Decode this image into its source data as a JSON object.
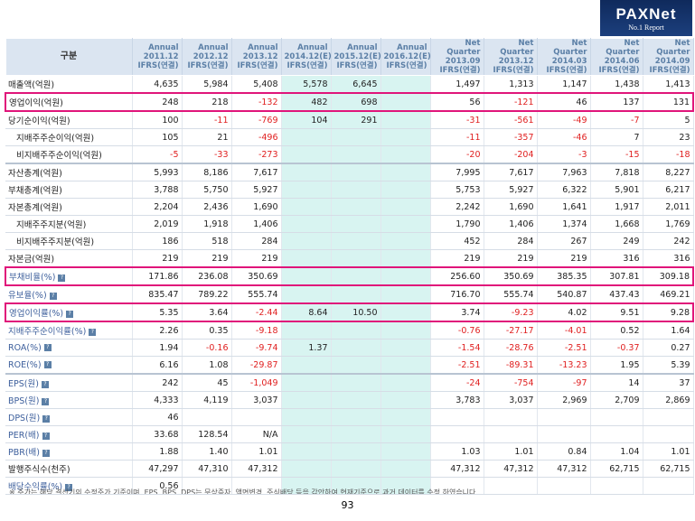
{
  "logo": {
    "brand": "PAXNet",
    "tagline": "No.1 Report"
  },
  "table": {
    "header": [
      [
        "구분"
      ],
      [
        "Annual",
        "2011.12",
        "IFRS(연결)"
      ],
      [
        "Annual",
        "2012.12",
        "IFRS(연결)"
      ],
      [
        "Annual",
        "2013.12",
        "IFRS(연결)"
      ],
      [
        "Annual",
        "2014.12(E)",
        "IFRS(연결)"
      ],
      [
        "Annual",
        "2015.12(E)",
        "IFRS(연결)"
      ],
      [
        "Annual",
        "2016.12(E)",
        "IFRS(연결)"
      ],
      [
        "Net Quarter",
        "2013.09",
        "IFRS(연결)"
      ],
      [
        "Net Quarter",
        "2013.12",
        "IFRS(연결)"
      ],
      [
        "Net Quarter",
        "2014.03",
        "IFRS(연결)"
      ],
      [
        "Net Quarter",
        "2014.06",
        "IFRS(연결)"
      ],
      [
        "Net Quarter",
        "2014.09",
        "IFRS(연결)"
      ]
    ],
    "estimate_columns": [
      4,
      5,
      6
    ],
    "rows": [
      {
        "label": "매출액(억원)",
        "cells": [
          "4,635",
          "5,984",
          "5,408",
          "5,578",
          "6,645",
          null,
          "1,497",
          "1,313",
          "1,147",
          "1,438",
          "1,413"
        ]
      },
      {
        "label": "영업이익(억원)",
        "highlight": true,
        "cells": [
          "248",
          "218",
          "-132",
          "482",
          "698",
          null,
          "56",
          "-121",
          "46",
          "137",
          "131"
        ]
      },
      {
        "label": "당기순이익(억원)",
        "cells": [
          "100",
          "-11",
          "-769",
          "104",
          "291",
          null,
          "-31",
          "-561",
          "-49",
          "-7",
          "5"
        ]
      },
      {
        "label": "지배주주순이익(억원)",
        "indent": true,
        "cells": [
          "105",
          "21",
          "-496",
          null,
          null,
          null,
          "-11",
          "-357",
          "-46",
          "7",
          "23"
        ]
      },
      {
        "label": "비지배주주순이익(억원)",
        "indent": true,
        "cells": [
          "-5",
          "-33",
          "-273",
          null,
          null,
          null,
          "-20",
          "-204",
          "-3",
          "-15",
          "-18"
        ]
      },
      {
        "label": "자산총계(억원)",
        "group_start": true,
        "cells": [
          "5,993",
          "8,186",
          "7,617",
          null,
          null,
          null,
          "7,995",
          "7,617",
          "7,963",
          "7,818",
          "8,227"
        ]
      },
      {
        "label": "부채총계(억원)",
        "cells": [
          "3,788",
          "5,750",
          "5,927",
          null,
          null,
          null,
          "5,753",
          "5,927",
          "6,322",
          "5,901",
          "6,217"
        ]
      },
      {
        "label": "자본총계(억원)",
        "cells": [
          "2,204",
          "2,436",
          "1,690",
          null,
          null,
          null,
          "2,242",
          "1,690",
          "1,641",
          "1,917",
          "2,011"
        ]
      },
      {
        "label": "지배주주지분(억원)",
        "indent": true,
        "cells": [
          "2,019",
          "1,918",
          "1,406",
          null,
          null,
          null,
          "1,790",
          "1,406",
          "1,374",
          "1,668",
          "1,769"
        ]
      },
      {
        "label": "비지배주주지분(억원)",
        "indent": true,
        "cells": [
          "186",
          "518",
          "284",
          null,
          null,
          null,
          "452",
          "284",
          "267",
          "249",
          "242"
        ]
      },
      {
        "label": "자본금(억원)",
        "cells": [
          "219",
          "219",
          "219",
          null,
          null,
          null,
          "219",
          "219",
          "219",
          "316",
          "316"
        ]
      },
      {
        "label": "부채비율(%)",
        "link": true,
        "highlight": true,
        "group_start": true,
        "cells": [
          "171.86",
          "236.08",
          "350.69",
          null,
          null,
          null,
          "256.60",
          "350.69",
          "385.35",
          "307.81",
          "309.18"
        ]
      },
      {
        "label": "유보율(%)",
        "link": true,
        "cells": [
          "835.47",
          "789.22",
          "555.74",
          null,
          null,
          null,
          "716.70",
          "555.74",
          "540.87",
          "437.43",
          "469.21"
        ]
      },
      {
        "label": "영업이익률(%)",
        "link": true,
        "highlight": true,
        "group_start": true,
        "cells": [
          "5.35",
          "3.64",
          "-2.44",
          "8.64",
          "10.50",
          null,
          "3.74",
          "-9.23",
          "4.02",
          "9.51",
          "9.28"
        ]
      },
      {
        "label": "지배주주순이익률(%)",
        "link": true,
        "cells": [
          "2.26",
          "0.35",
          "-9.18",
          null,
          null,
          null,
          "-0.76",
          "-27.17",
          "-4.01",
          "0.52",
          "1.64"
        ]
      },
      {
        "label": "ROA(%)",
        "link": true,
        "cells": [
          "1.94",
          "-0.16",
          "-9.74",
          "1.37",
          null,
          null,
          "-1.54",
          "-28.76",
          "-2.51",
          "-0.37",
          "0.27"
        ]
      },
      {
        "label": "ROE(%)",
        "link": true,
        "cells": [
          "6.16",
          "1.08",
          "-29.87",
          null,
          null,
          null,
          "-2.51",
          "-89.31",
          "-13.23",
          "1.95",
          "5.39"
        ]
      },
      {
        "label": "EPS(원)",
        "link": true,
        "group_start": true,
        "cells": [
          "242",
          "45",
          "-1,049",
          null,
          null,
          null,
          "-24",
          "-754",
          "-97",
          "14",
          "37"
        ]
      },
      {
        "label": "BPS(원)",
        "link": true,
        "cells": [
          "4,333",
          "4,119",
          "3,037",
          null,
          null,
          null,
          "3,783",
          "3,037",
          "2,969",
          "2,709",
          "2,869"
        ]
      },
      {
        "label": "DPS(원)",
        "link": true,
        "cells": [
          "46",
          null,
          null,
          null,
          null,
          null,
          null,
          null,
          null,
          null,
          null
        ]
      },
      {
        "label": "PER(배)",
        "link": true,
        "cells": [
          "33.68",
          "128.54",
          "N/A",
          null,
          null,
          null,
          null,
          null,
          null,
          null,
          null
        ]
      },
      {
        "label": "PBR(배)",
        "link": true,
        "cells": [
          "1.88",
          "1.40",
          "1.01",
          null,
          null,
          null,
          "1.03",
          "1.01",
          "0.84",
          "1.04",
          "1.01"
        ]
      },
      {
        "label": "발행주식수(천주)",
        "cells": [
          "47,297",
          "47,310",
          "47,312",
          null,
          null,
          null,
          "47,312",
          "47,312",
          "47,312",
          "62,715",
          "62,715"
        ]
      },
      {
        "label": "배당수익률(%)",
        "link": true,
        "cells": [
          "0.56",
          null,
          null,
          null,
          null,
          null,
          null,
          null,
          null,
          null,
          null
        ]
      }
    ]
  },
  "footnote": "※ 주가는 해당 결산기의 수정주가 기준이며, EPS, BPS, DPS는 무상증자, 액면변경, 주식배당 등을 감안하여 현재기준으로 과거 데이터를 수정 하였습니다",
  "page_number": "93"
}
